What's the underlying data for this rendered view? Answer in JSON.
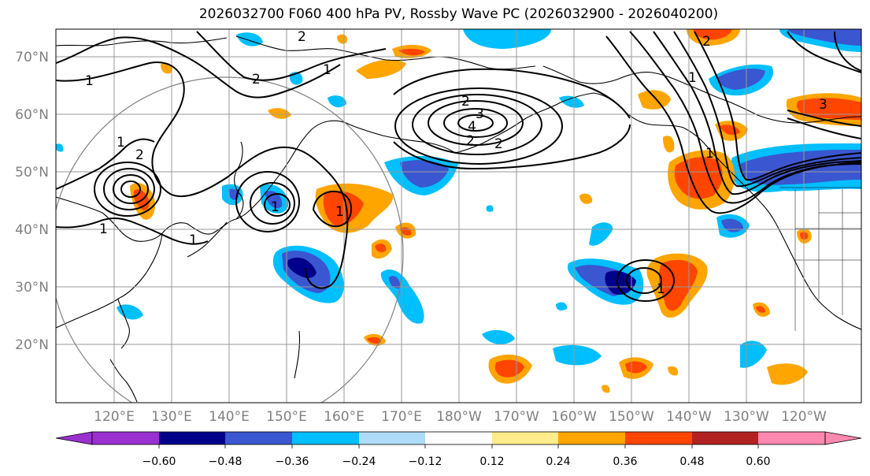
{
  "title": "2026032700 F060 400 hPa PV, Rossby Wave PC (2026032900 - 2026040200)",
  "map": {
    "lat_labels": [
      "70°N",
      "60°N",
      "50°N",
      "40°N",
      "30°N",
      "20°N"
    ],
    "lon_labels": [
      "120°E",
      "130°E",
      "140°E",
      "150°E",
      "160°E",
      "170°E",
      "180°W",
      "170°W",
      "160°W",
      "150°W",
      "140°W",
      "130°W",
      "120°W"
    ],
    "contour_labels": [
      "2",
      "1",
      "2",
      "1",
      "3",
      "2",
      "4",
      "2",
      "2",
      "1",
      "2",
      "1",
      "1",
      "1",
      "1",
      "1",
      "2",
      "1",
      "3",
      "1"
    ],
    "colors": {
      "neg_060": "#9b30d0",
      "neg_048": "#00008b",
      "neg_036": "#3a56d0",
      "neg_024": "#00bfff",
      "neg_012": "#aedcf8",
      "zero": "#ffffff",
      "pos_012": "#ffec8b",
      "pos_024": "#ffa500",
      "pos_036": "#ff4500",
      "pos_048": "#b22222",
      "pos_060": "#ff88b0"
    }
  },
  "colorbar": {
    "ticks": [
      "−0.60",
      "−0.48",
      "−0.36",
      "−0.24",
      "−0.12",
      "0.12",
      "0.24",
      "0.36",
      "0.48",
      "0.60"
    ],
    "colors": [
      "#9b30d0",
      "#00008b",
      "#3a56d0",
      "#00bfff",
      "#aedcf8",
      "#ffffff",
      "#ffec8b",
      "#ffa500",
      "#ff4500",
      "#b22222",
      "#ff88b0"
    ]
  }
}
